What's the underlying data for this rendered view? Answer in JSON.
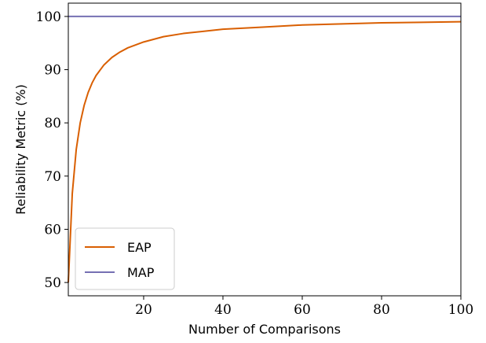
{
  "chart_data": {
    "type": "line",
    "title": "",
    "xlabel": "Number of Comparisons",
    "ylabel": "Reliability Metric (%)",
    "xlim": [
      1,
      100
    ],
    "ylim": [
      47.5,
      102.5
    ],
    "x_ticks": [
      20,
      40,
      60,
      80,
      100
    ],
    "y_ticks": [
      50,
      60,
      70,
      80,
      90,
      100
    ],
    "grid": false,
    "legend": {
      "placement": "bottom-left"
    },
    "series": [
      {
        "name": "EAP",
        "color": "#d95f02",
        "x": [
          1,
          2,
          3,
          4,
          5,
          6,
          7,
          8,
          10,
          12,
          14,
          16,
          20,
          25,
          30,
          40,
          50,
          60,
          70,
          80,
          90,
          100
        ],
        "y": [
          50.0,
          66.7,
          75.0,
          80.0,
          83.3,
          85.7,
          87.5,
          88.9,
          90.9,
          92.3,
          93.3,
          94.1,
          95.2,
          96.2,
          96.8,
          97.6,
          98.0,
          98.4,
          98.6,
          98.8,
          98.9,
          99.0
        ]
      },
      {
        "name": "MAP",
        "color": "#7570b3",
        "x": [
          1,
          100
        ],
        "y": [
          100,
          100
        ]
      }
    ]
  }
}
